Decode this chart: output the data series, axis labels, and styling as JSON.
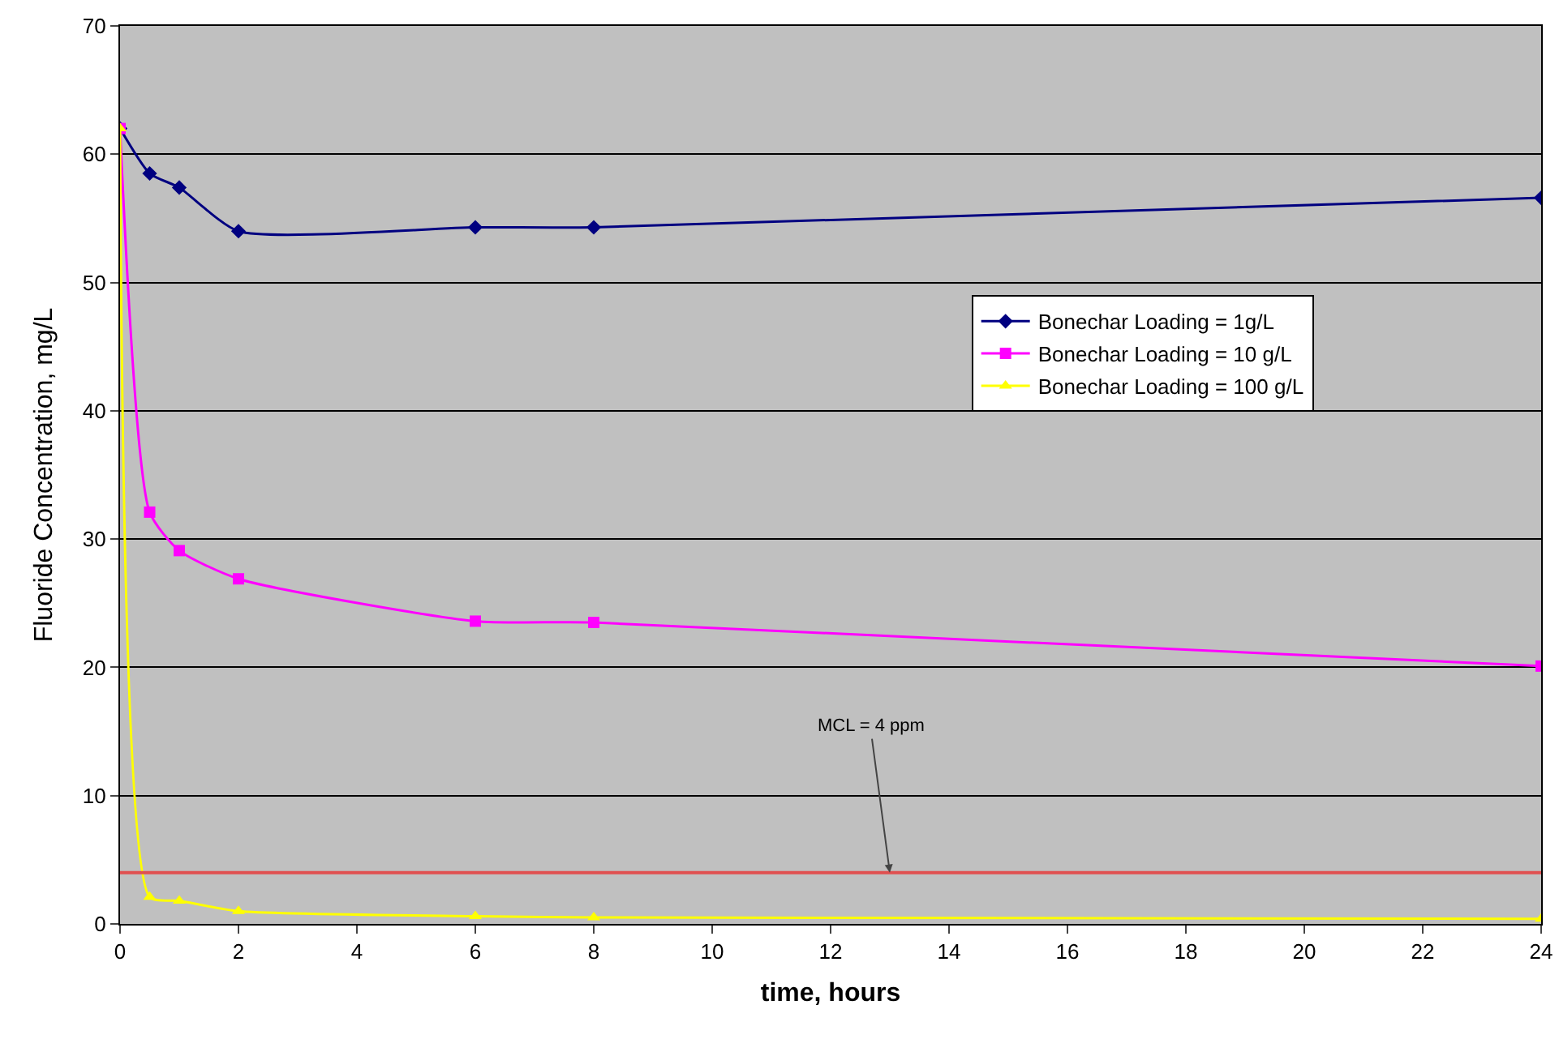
{
  "chart_data": {
    "type": "line",
    "xlabel": "time, hours",
    "ylabel": "Fluoride Concentration, mg/L",
    "x": [
      0,
      0.5,
      1,
      2,
      6,
      8,
      24
    ],
    "series": [
      {
        "name": "Bonechar Loading = 1g/L",
        "color": "#000080",
        "marker": "diamond",
        "values": [
          62,
          58.5,
          57.4,
          54,
          54.3,
          54.3,
          56.6
        ]
      },
      {
        "name": "Bonechar Loading = 10 g/L",
        "color": "#ff00ff",
        "marker": "square",
        "values": [
          62,
          32.1,
          29.1,
          26.9,
          23.6,
          23.5,
          20.1
        ]
      },
      {
        "name": "Bonechar Loading = 100 g/L",
        "color": "#ffff00",
        "marker": "triangle",
        "values": [
          62,
          2.1,
          1.8,
          1,
          0.6,
          0.5,
          0.4
        ]
      }
    ],
    "xlim": [
      0,
      24
    ],
    "xticks": [
      0,
      2,
      4,
      6,
      8,
      10,
      12,
      14,
      16,
      18,
      20,
      22,
      24
    ],
    "ylim": [
      0,
      70
    ],
    "yticks": [
      0,
      10,
      20,
      30,
      40,
      50,
      60,
      70
    ],
    "ref_lines": [
      {
        "axis": "y",
        "value": 4,
        "color": "#e05050"
      }
    ],
    "annotations": [
      {
        "text": "MCL = 4 ppm",
        "x": 13,
        "y": 4
      }
    ],
    "grid": "y",
    "legend": "right"
  }
}
